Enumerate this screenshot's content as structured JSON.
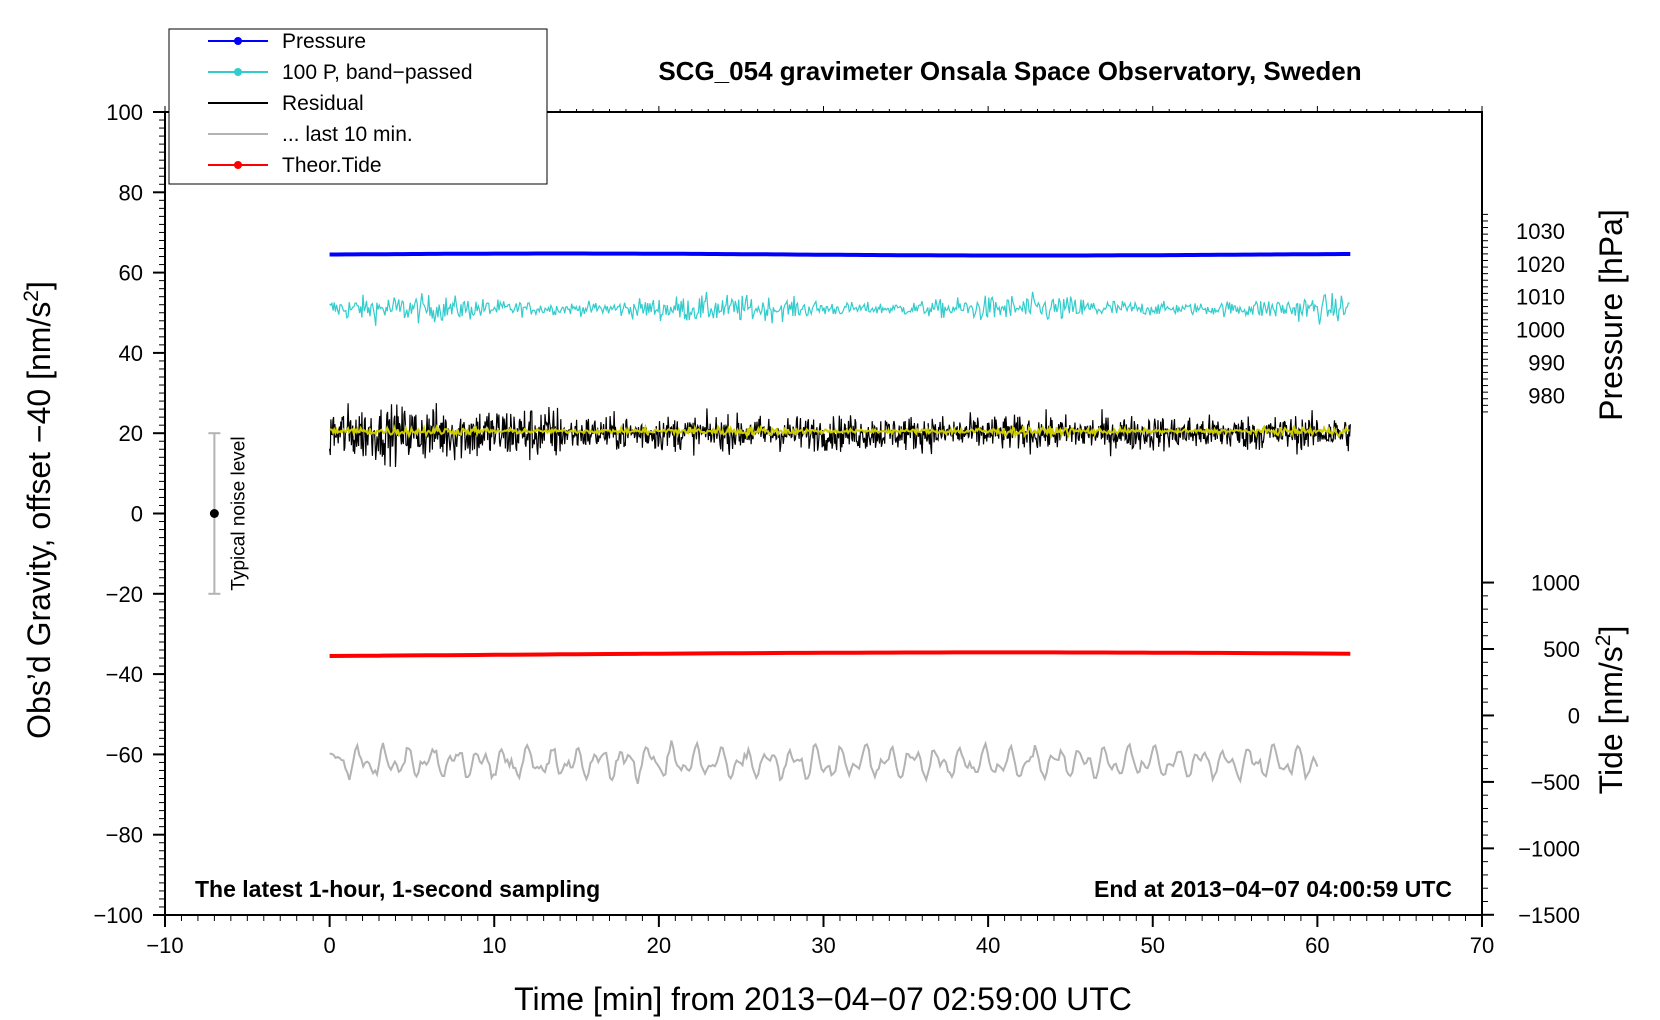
{
  "chart_data": {
    "type": "line",
    "title": "SCG_054 gravimeter Onsala Space Observatory, Sweden",
    "xlabel": "Time [min] from 2013−04−07 02:59:00 UTC",
    "ylabel_left_prefix": "Obs’d Gravity, offset −40 [nm/s",
    "ylabel_left_sup": "2",
    "ylabel_left_suffix": "]",
    "ylabel_right_pressure": "Pressure [hPa]",
    "ylabel_right_tide_prefix": "Tide [nm/s",
    "ylabel_right_tide_sup": "2",
    "ylabel_right_tide_suffix": "]",
    "xlim": [
      -10,
      70
    ],
    "ylim": [
      -100,
      100
    ],
    "x_ticks": [
      -10,
      0,
      10,
      20,
      30,
      40,
      50,
      60,
      70
    ],
    "x_tick_labels": [
      "−10",
      "0",
      "10",
      "20",
      "30",
      "40",
      "50",
      "60",
      "70"
    ],
    "y_ticks": [
      -100,
      -80,
      -60,
      -40,
      -20,
      0,
      20,
      40,
      60,
      80,
      100
    ],
    "y_tick_labels": [
      "−100",
      "−80",
      "−60",
      "−40",
      "−20",
      "0",
      "20",
      "40",
      "60",
      "80",
      "100"
    ],
    "pressure_ticks": [
      980,
      990,
      1000,
      1010,
      1020,
      1030
    ],
    "pressure_tick_labels": [
      "980",
      "990",
      "1000",
      "1010",
      "1020",
      "1030"
    ],
    "pressure_map": {
      "p0": 1000,
      "y0": 45.8,
      "slope": 0.82
    },
    "tide_ticks": [
      -1500,
      -1000,
      -500,
      0,
      500,
      1000
    ],
    "tide_tick_labels": [
      "−1500",
      "−1000",
      "−500",
      "0",
      "500",
      "1000"
    ],
    "tide_map": {
      "t0": 0,
      "y0": -50.3,
      "slope": 0.0331
    },
    "annotation_left": "The latest 1-hour, 1-second sampling",
    "annotation_right": "End at 2013−04−07 04:00:59 UTC",
    "noise_label": "Typical noise level",
    "noise_bar": {
      "x": -7,
      "center": 0,
      "low": -20,
      "high": 20
    },
    "legend": [
      {
        "label": "Pressure",
        "color": "#0000ff",
        "marker": true
      },
      {
        "label": "100 P, band−passed",
        "color": "#33cccc",
        "marker": true
      },
      {
        "label": "Residual",
        "color": "#000000",
        "marker": false
      },
      {
        "label": "... last 10 min.",
        "color": "#b3b3b3",
        "marker": false
      },
      {
        "label": "Theor.Tide",
        "color": "#ff0000",
        "marker": true
      }
    ],
    "series": [
      {
        "name": "Pressure",
        "color": "#0000ff",
        "x_range": [
          0,
          62
        ],
        "level": 64.5,
        "noise": 0.25,
        "kind": "flat"
      },
      {
        "name": "100 P, band−passed",
        "color": "#33cccc",
        "x_range": [
          0,
          62
        ],
        "level": 51,
        "noise": 3.2,
        "kind": "noisy"
      },
      {
        "name": "Residual",
        "color": "#000000",
        "x_range": [
          0,
          62
        ],
        "level": 20,
        "noise": 6.5,
        "kind": "noisy"
      },
      {
        "name": "Residual smoothed",
        "color": "#cccc00",
        "x_range": [
          0,
          62
        ],
        "level": 20.5,
        "noise": 1.0,
        "kind": "noisy"
      },
      {
        "name": "Theor.Tide",
        "color": "#ff0000",
        "x_range": [
          0,
          62
        ],
        "level": -35.2,
        "noise": 0.0,
        "kind": "tide"
      },
      {
        "name": "... last 10 min.",
        "color": "#b3b3b3",
        "x_range": [
          0,
          60
        ],
        "level": -62,
        "noise": 3.5,
        "kind": "wave"
      }
    ]
  }
}
